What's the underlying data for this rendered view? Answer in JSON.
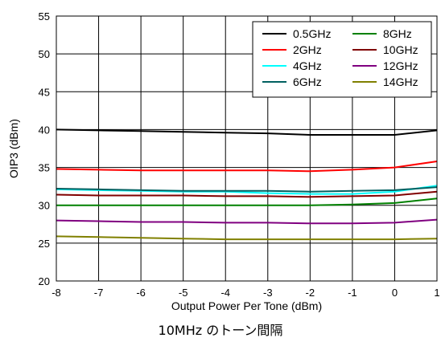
{
  "chart_data": {
    "type": "line",
    "xlabel": "Output Power Per Tone (dBm)",
    "ylabel": "OIP3 (dBm)",
    "xlim": [
      -8,
      1
    ],
    "ylim": [
      20,
      55
    ],
    "xticks": [
      -8,
      -7,
      -6,
      -5,
      -4,
      -3,
      -2,
      -1,
      0,
      1
    ],
    "yticks": [
      20,
      25,
      30,
      35,
      40,
      45,
      50,
      55
    ],
    "grid": true,
    "legend_position": "top-right",
    "x": [
      -8,
      -7,
      -6,
      -5,
      -4,
      -3,
      -2,
      -1,
      0,
      1
    ],
    "series": [
      {
        "name": "0.5GHz",
        "color": "#000000",
        "values": [
          40.0,
          39.9,
          39.8,
          39.7,
          39.6,
          39.5,
          39.3,
          39.3,
          39.3,
          39.9
        ]
      },
      {
        "name": "2GHz",
        "color": "#ff0000",
        "values": [
          34.8,
          34.7,
          34.6,
          34.6,
          34.6,
          34.6,
          34.5,
          34.7,
          35.0,
          35.8
        ]
      },
      {
        "name": "4GHz",
        "color": "#00ffff",
        "values": [
          32.1,
          32.0,
          31.9,
          31.8,
          31.8,
          31.6,
          31.5,
          31.5,
          31.8,
          32.6
        ]
      },
      {
        "name": "6GHz",
        "color": "#006060",
        "values": [
          32.2,
          32.1,
          32.0,
          31.9,
          31.9,
          31.9,
          31.8,
          31.9,
          32.0,
          32.4
        ]
      },
      {
        "name": "8GHz",
        "color": "#008000",
        "values": [
          30.0,
          30.0,
          30.0,
          30.0,
          30.0,
          30.0,
          30.0,
          30.1,
          30.3,
          30.9
        ]
      },
      {
        "name": "10GHz",
        "color": "#800000",
        "values": [
          31.4,
          31.3,
          31.3,
          31.3,
          31.2,
          31.2,
          31.1,
          31.2,
          31.3,
          31.8
        ]
      },
      {
        "name": "12GHz",
        "color": "#800080",
        "values": [
          28.0,
          27.9,
          27.8,
          27.8,
          27.7,
          27.7,
          27.6,
          27.6,
          27.7,
          28.1
        ]
      },
      {
        "name": "14GHz",
        "color": "#808000",
        "values": [
          25.9,
          25.8,
          25.7,
          25.6,
          25.5,
          25.5,
          25.5,
          25.5,
          25.5,
          25.6
        ]
      }
    ]
  },
  "caption": "10MHz のトーン間隔"
}
